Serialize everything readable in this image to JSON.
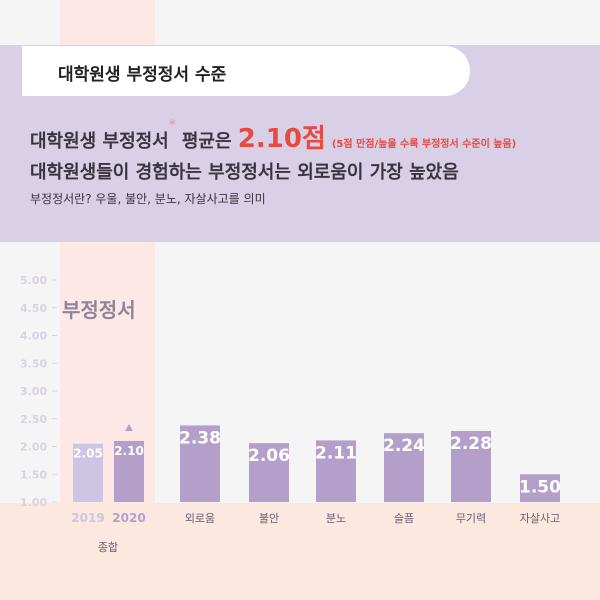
{
  "header": {
    "title": "대학원생 부정정서 수준",
    "line1_prefix": "대학원생 부정정서",
    "line1_star": "*",
    "line1_mid": " 평균은 ",
    "line1_value": "2.10점",
    "line1_note": "(5점 만점/높을 수록 부정정서 수준이 높음)",
    "line2": "대학원생들이 경험하는 부정정서는 외로움이 가장 높았음",
    "line3": "부정정서란? 우울, 불안, 분노, 자살사고를 의미"
  },
  "colors": {
    "bar_light": "#cdc5e3",
    "bar": "#b49fca",
    "axis_text": "#d9d2e2",
    "cat_text": "#6b5b73",
    "highlight_col": "#fde8e6"
  },
  "chart_data": {
    "type": "bar",
    "title": "부정정서",
    "ylim": [
      1.0,
      5.0
    ],
    "yticks": [
      "5.00",
      "4.50",
      "4.00",
      "3.50",
      "3.00",
      "2.50",
      "2.00",
      "1.50",
      "1.00"
    ],
    "categories": [
      "2019",
      "2020",
      "외로움",
      "불안",
      "분노",
      "슬픔",
      "무기력",
      "자살사고"
    ],
    "values": [
      2.05,
      2.1,
      2.38,
      2.06,
      2.11,
      2.24,
      2.28,
      1.5
    ],
    "labels": [
      "2.05",
      "2.10",
      "2.38",
      "2.06",
      "2.11",
      "2.24",
      "2.28",
      "1.50"
    ],
    "group_label": "종합"
  }
}
